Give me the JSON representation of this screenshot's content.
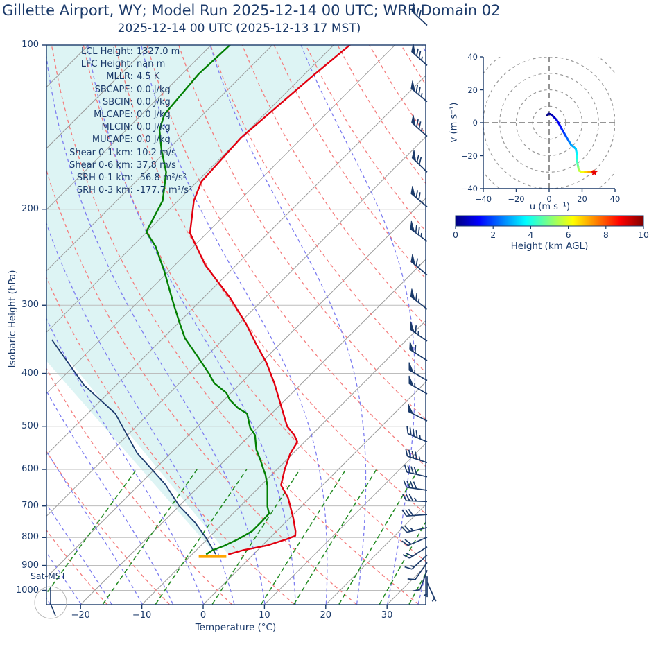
{
  "title": "Gillette  Airport, WY; Model Run 2025-12-14 00 UTC; WRF Domain 02",
  "subtitle": "2025-12-14 00 UTC  (2025-12-13 17 MST)",
  "skewt": {
    "x_label": "Temperature (°C)",
    "y_label": "Isobaric Height (hPa)",
    "x_ticks": [
      "−20",
      "−10",
      "0",
      "10",
      "20",
      "30"
    ],
    "x_tick_values": [
      -20,
      -10,
      0,
      10,
      20,
      30
    ],
    "y_ticks": [
      "100",
      "200",
      "300",
      "400",
      "500",
      "600",
      "700",
      "800",
      "900",
      "1000"
    ],
    "y_tick_values": [
      100,
      200,
      300,
      400,
      500,
      600,
      700,
      800,
      900,
      1000
    ],
    "corner_label": "Sat-MST",
    "stats": [
      {
        "label": "LCL Height:",
        "value": "1327.0 m"
      },
      {
        "label": "LFC Height:",
        "value": "nan m"
      },
      {
        "label": "MLLR:",
        "value": "4.5 K"
      },
      {
        "label": "SBCAPE:",
        "value": "0.0 J/kg"
      },
      {
        "label": "SBCIN:",
        "value": "0.0 J/kg"
      },
      {
        "label": "MLCAPE:",
        "value": "0.0 J/kg"
      },
      {
        "label": "MLCIN:",
        "value": "0.0 J/kg"
      },
      {
        "label": "MUCAPE:",
        "value": "0.0 J/kg"
      },
      {
        "label": "Shear 0-1 km:",
        "value": "10.2 m/s"
      },
      {
        "label": "Shear 0-6 km:",
        "value": "37.8 m/s"
      },
      {
        "label": "SRH 0-1 km:",
        "value": "-56.8 m²/s²"
      },
      {
        "label": "SRH 0-3 km:",
        "value": "-177.7 m²/s²"
      }
    ]
  },
  "hodograph": {
    "x_label": "u (m s⁻¹)",
    "y_label": "v (m s⁻¹)",
    "ticks": [
      "−40",
      "−20",
      "0",
      "20",
      "40"
    ],
    "tick_values": [
      -40,
      -20,
      0,
      20,
      40
    ],
    "ring_radii": [
      10,
      20,
      30,
      40,
      50
    ],
    "range": [
      -40,
      40
    ]
  },
  "colorbar": {
    "label": "Height (km AGL)",
    "ticks": [
      "0",
      "2",
      "4",
      "6",
      "8",
      "10"
    ],
    "tick_values": [
      0,
      2,
      4,
      6,
      8,
      10
    ],
    "min": 0,
    "max": 10
  },
  "colors": {
    "navy": "#1b3a6a",
    "temperature": "#e2000f",
    "dewpoint": "#038003",
    "parcel": "#1b3a6d",
    "surface_bar": "#ffa500",
    "cin_fill": "#ddf4f4",
    "isotherm": "#9a9a9a",
    "isobar": "#bdbdbd",
    "dry_adiabat": "#f47c7c",
    "moist_adiabat": "#7d7df0",
    "mixing_ratio": "#228b22",
    "hodo_ring": "#999999",
    "dial": "#b9b9b9",
    "star": "#e60000"
  },
  "chart_data": [
    {
      "type": "line",
      "name": "temperature",
      "x": "temperature_degC",
      "y": "pressure_hPa",
      "points": [
        [
          99,
          -67.3
        ],
        [
          114,
          -68.4
        ],
        [
          148,
          -70.0
        ],
        [
          178,
          -69.3
        ],
        [
          193,
          -67.4
        ],
        [
          221,
          -62.8
        ],
        [
          253,
          -55.1
        ],
        [
          291,
          -45.6
        ],
        [
          325,
          -38.7
        ],
        [
          352,
          -34.1
        ],
        [
          382,
          -29.2
        ],
        [
          417,
          -24.5
        ],
        [
          458,
          -19.8
        ],
        [
          500,
          -15.4
        ],
        [
          519,
          -12.8
        ],
        [
          534,
          -11.2
        ],
        [
          562,
          -10.4
        ],
        [
          599,
          -8.8
        ],
        [
          641,
          -6.8
        ],
        [
          676,
          -3.6
        ],
        [
          700,
          -1.9
        ],
        [
          737,
          0.6
        ],
        [
          779,
          3.1
        ],
        [
          794,
          3.8
        ],
        [
          805,
          3.0
        ],
        [
          827,
          0.8
        ],
        [
          844,
          -2.4
        ],
        [
          859,
          -4.1
        ]
      ]
    },
    {
      "type": "line",
      "name": "dewpoint",
      "x": "dewpoint_degC",
      "y": "pressure_hPa",
      "points": [
        [
          99,
          -86.9
        ],
        [
          113,
          -87.3
        ],
        [
          134,
          -86.3
        ],
        [
          143,
          -84.6
        ],
        [
          156,
          -80.9
        ],
        [
          171,
          -76.6
        ],
        [
          184,
          -74.1
        ],
        [
          193,
          -72.5
        ],
        [
          220,
          -70.1
        ],
        [
          234,
          -66.2
        ],
        [
          260,
          -60.7
        ],
        [
          300,
          -53.6
        ],
        [
          322,
          -50.0
        ],
        [
          345,
          -46.4
        ],
        [
          373,
          -41.3
        ],
        [
          400,
          -36.8
        ],
        [
          417,
          -34.3
        ],
        [
          434,
          -30.8
        ],
        [
          447,
          -29.1
        ],
        [
          463,
          -26.4
        ],
        [
          474,
          -24.0
        ],
        [
          503,
          -21.2
        ],
        [
          519,
          -19.2
        ],
        [
          552,
          -16.6
        ],
        [
          576,
          -14.3
        ],
        [
          599,
          -12.3
        ],
        [
          614,
          -11.0
        ],
        [
          643,
          -8.9
        ],
        [
          702,
          -5.5
        ],
        [
          723,
          -4.1
        ],
        [
          750,
          -4.0
        ],
        [
          779,
          -4.0
        ],
        [
          806,
          -5.0
        ],
        [
          829,
          -6.2
        ],
        [
          845,
          -7.4
        ],
        [
          859,
          -7.7
        ]
      ]
    },
    {
      "type": "line",
      "name": "parcel_profile",
      "x": "temperature_degC",
      "y": "pressure_hPa",
      "points": [
        [
          858,
          -6.2
        ],
        [
          800,
          -10.5
        ],
        [
          751,
          -14.7
        ],
        [
          700,
          -20.0
        ],
        [
          639,
          -25.8
        ],
        [
          560,
          -35.5
        ],
        [
          474,
          -45.5
        ],
        [
          420,
          -55.3
        ],
        [
          347,
          -67.9
        ]
      ]
    },
    {
      "type": "line",
      "name": "surface_bar",
      "y": "pressure_hPa",
      "pressure": 866,
      "t_from": -8.6,
      "t_to": -4.1
    },
    {
      "type": "line",
      "name": "hodograph_trace",
      "x": "u_ms",
      "y": "v_ms",
      "color_by": "height_km",
      "points": [
        [
          -1.1,
          4.5,
          0
        ],
        [
          -0.4,
          5.5,
          0.15
        ],
        [
          0.8,
          5.2,
          0.3
        ],
        [
          2.0,
          4.3,
          0.5
        ],
        [
          3.3,
          3.0,
          0.7
        ],
        [
          4.6,
          1.6,
          0.9
        ],
        [
          5.6,
          0.0,
          1.1
        ],
        [
          6.6,
          -1.8,
          1.3
        ],
        [
          7.7,
          -3.9,
          1.5
        ],
        [
          9.2,
          -6.5,
          1.8
        ],
        [
          10.6,
          -8.9,
          2.1
        ],
        [
          12.0,
          -11.3,
          2.4
        ],
        [
          13.4,
          -13.5,
          2.7
        ],
        [
          15.1,
          -14.9,
          3.0
        ],
        [
          16.2,
          -15.9,
          3.2
        ],
        [
          16.6,
          -18.0,
          3.5
        ],
        [
          16.9,
          -20.1,
          3.8
        ],
        [
          16.9,
          -22.5,
          4.1
        ],
        [
          17.2,
          -24.8,
          4.5
        ],
        [
          17.6,
          -26.8,
          4.9
        ],
        [
          18.0,
          -29.0,
          5.4
        ],
        [
          19.7,
          -29.9,
          5.9
        ],
        [
          21.8,
          -30.0,
          6.4
        ],
        [
          23.9,
          -29.9,
          6.9
        ],
        [
          25.8,
          -30.1,
          7.4
        ],
        [
          26.8,
          -29.3,
          7.8
        ]
      ],
      "end_marker": {
        "u": 27.3,
        "v": -30.2,
        "shape": "star"
      }
    },
    {
      "type": "barbs",
      "name": "wind_barbs",
      "units": "kt",
      "levels": [
        [
          92,
          313,
          70
        ],
        [
          109,
          312,
          75
        ],
        [
          127,
          310,
          75
        ],
        [
          147,
          312,
          75
        ],
        [
          171,
          314,
          70
        ],
        [
          198,
          310,
          70
        ],
        [
          229,
          307,
          75
        ],
        [
          264,
          310,
          65
        ],
        [
          305,
          308,
          65
        ],
        [
          349,
          305,
          65
        ],
        [
          379,
          303,
          60
        ],
        [
          412,
          300,
          55
        ],
        [
          436,
          300,
          55
        ],
        [
          489,
          297,
          50
        ],
        [
          534,
          293,
          45
        ],
        [
          583,
          288,
          45
        ],
        [
          619,
          283,
          40
        ],
        [
          655,
          278,
          40
        ],
        [
          687,
          272,
          35
        ],
        [
          726,
          266,
          30
        ],
        [
          767,
          257,
          25
        ],
        [
          799,
          247,
          20
        ],
        [
          832,
          237,
          20
        ],
        [
          861,
          227,
          15
        ],
        [
          889,
          215,
          10
        ],
        [
          918,
          200,
          10
        ],
        [
          942,
          180,
          5
        ],
        [
          967,
          155,
          5
        ]
      ]
    }
  ]
}
